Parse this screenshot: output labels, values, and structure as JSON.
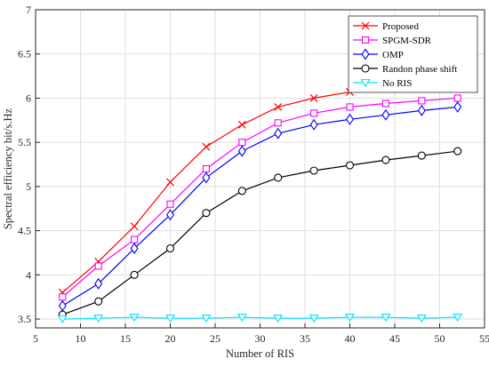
{
  "chart_data": {
    "type": "line",
    "title": "",
    "xlabel": "Number of RIS",
    "ylabel": "Spectral efficiency bit/s.Hz",
    "xlim": [
      5,
      55
    ],
    "ylim": [
      3.4,
      7
    ],
    "xticks": [
      "5",
      "10",
      "15",
      "20",
      "25",
      "30",
      "35",
      "40",
      "45",
      "50",
      "55"
    ],
    "yticks": [
      "3.5",
      "4",
      "4.5",
      "5",
      "5.5",
      "6",
      "6.5",
      "7"
    ],
    "grid": true,
    "legend_position": "top-right",
    "x": [
      8,
      12,
      16,
      20,
      24,
      28,
      32,
      36,
      40,
      44,
      48,
      52
    ],
    "series": [
      {
        "name": "Proposed",
        "color": "#ff0000",
        "marker": "x-marker",
        "values": [
          3.8,
          4.15,
          4.55,
          5.05,
          5.45,
          5.7,
          5.9,
          6.0,
          6.07,
          6.12,
          6.16,
          6.2
        ]
      },
      {
        "name": "SPGM-SDR",
        "color": "#ff00ff",
        "marker": "square-marker",
        "values": [
          3.75,
          4.1,
          4.4,
          4.8,
          5.2,
          5.5,
          5.72,
          5.83,
          5.9,
          5.94,
          5.97,
          6.0
        ]
      },
      {
        "name": "OMP",
        "color": "#0000ff",
        "marker": "diamond-marker",
        "values": [
          3.65,
          3.9,
          4.3,
          4.68,
          5.1,
          5.4,
          5.6,
          5.7,
          5.76,
          5.81,
          5.86,
          5.9
        ]
      },
      {
        "name": "Randon phase shift",
        "color": "#000000",
        "marker": "circle-marker",
        "values": [
          3.55,
          3.7,
          4.0,
          4.3,
          4.7,
          4.95,
          5.1,
          5.18,
          5.24,
          5.3,
          5.35,
          5.4
        ]
      },
      {
        "name": "No RIS",
        "color": "#00e5ff",
        "marker": "triangle-down-marker",
        "values": [
          3.5,
          3.51,
          3.52,
          3.51,
          3.51,
          3.52,
          3.51,
          3.51,
          3.52,
          3.52,
          3.51,
          3.52
        ]
      }
    ]
  }
}
